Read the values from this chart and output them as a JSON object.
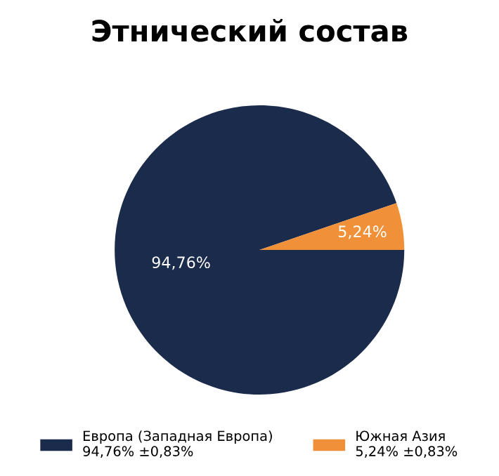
{
  "chart_data": {
    "type": "pie",
    "title": "Этнический состав",
    "categories": [
      "Европа (Западная Европа)",
      "Южная Азия"
    ],
    "values": [
      94.76,
      5.24
    ],
    "colors": [
      "#1b2b4b",
      "#f0913a"
    ],
    "value_labels": [
      "94,76%",
      "5,24%"
    ],
    "annotations": [
      "94,76% ±0,83%",
      "5,24% ±0,83%"
    ],
    "legend": "bottom"
  }
}
